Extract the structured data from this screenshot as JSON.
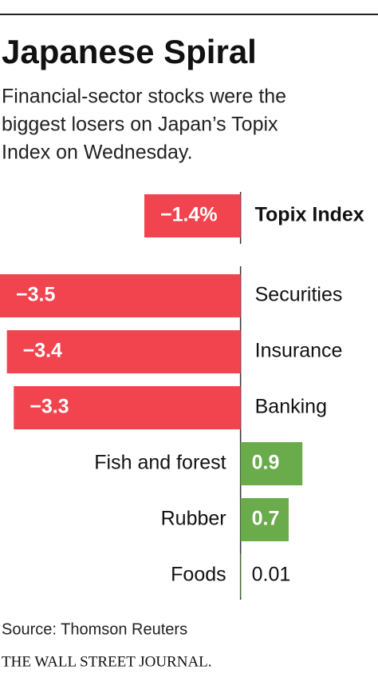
{
  "chart_data": {
    "type": "bar",
    "orientation": "horizontal",
    "title": "Japanese Spiral",
    "subtitle": [
      "Financial-sector stocks were the",
      "biggest losers on Japan’s Topix",
      "Index on Wednesday."
    ],
    "categories": [
      "Topix Index",
      "Securities",
      "Insurance",
      "Banking",
      "Fish and forest",
      "Rubber",
      "Foods"
    ],
    "values": [
      -1.4,
      -3.5,
      -3.4,
      -3.3,
      0.9,
      0.7,
      0.01
    ],
    "value_labels": [
      "−1.4%",
      "−3.5",
      "−3.4",
      "−3.3",
      "0.9",
      "0.7",
      "0.01"
    ],
    "negative_color": "#f2444f",
    "positive_color": "#6aab4c",
    "xlim": [
      -3.5,
      2
    ],
    "source": "Source: Thomson Reuters",
    "publisher": "THE WALL STREET JOURNAL."
  }
}
